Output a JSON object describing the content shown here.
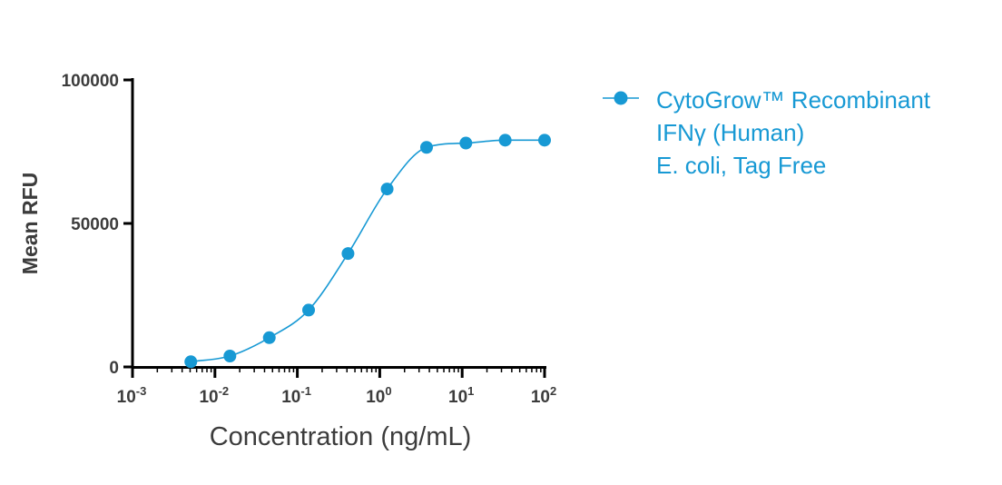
{
  "chart_data": {
    "type": "scatter",
    "title": "",
    "xlabel": "Concentration (ng/mL)",
    "ylabel": "Mean RFU",
    "x_scale": "log10",
    "xlim": [
      0.001,
      100
    ],
    "ylim": [
      0,
      100000
    ],
    "x_ticks": [
      0.001,
      0.01,
      0.1,
      1,
      10,
      100
    ],
    "x_tick_labels": [
      {
        "base": "10",
        "exp": "-3"
      },
      {
        "base": "10",
        "exp": "-2"
      },
      {
        "base": "10",
        "exp": "-1"
      },
      {
        "base": "10",
        "exp": "0"
      },
      {
        "base": "10",
        "exp": "1"
      },
      {
        "base": "10",
        "exp": "2"
      }
    ],
    "y_ticks": [
      0,
      50000,
      100000
    ],
    "y_tick_labels": [
      "0",
      "50000",
      "100000"
    ],
    "grid": false,
    "legend_position": "right",
    "series": [
      {
        "name_lines": [
          "CytoGrow™ Recombinant",
          "IFNγ (Human)",
          "E. coli, Tag Free"
        ],
        "color": "#1799d4",
        "marker": "circle",
        "fit": "four-parameter logistic curve",
        "points": [
          {
            "x": 0.0051,
            "y": 1800
          },
          {
            "x": 0.0152,
            "y": 3800
          },
          {
            "x": 0.0457,
            "y": 10200
          },
          {
            "x": 0.137,
            "y": 19800
          },
          {
            "x": 0.412,
            "y": 39500
          },
          {
            "x": 1.23,
            "y": 62000
          },
          {
            "x": 3.7,
            "y": 76500
          },
          {
            "x": 11.1,
            "y": 78000
          },
          {
            "x": 33.3,
            "y": 79000
          },
          {
            "x": 100,
            "y": 79000
          }
        ]
      }
    ]
  }
}
